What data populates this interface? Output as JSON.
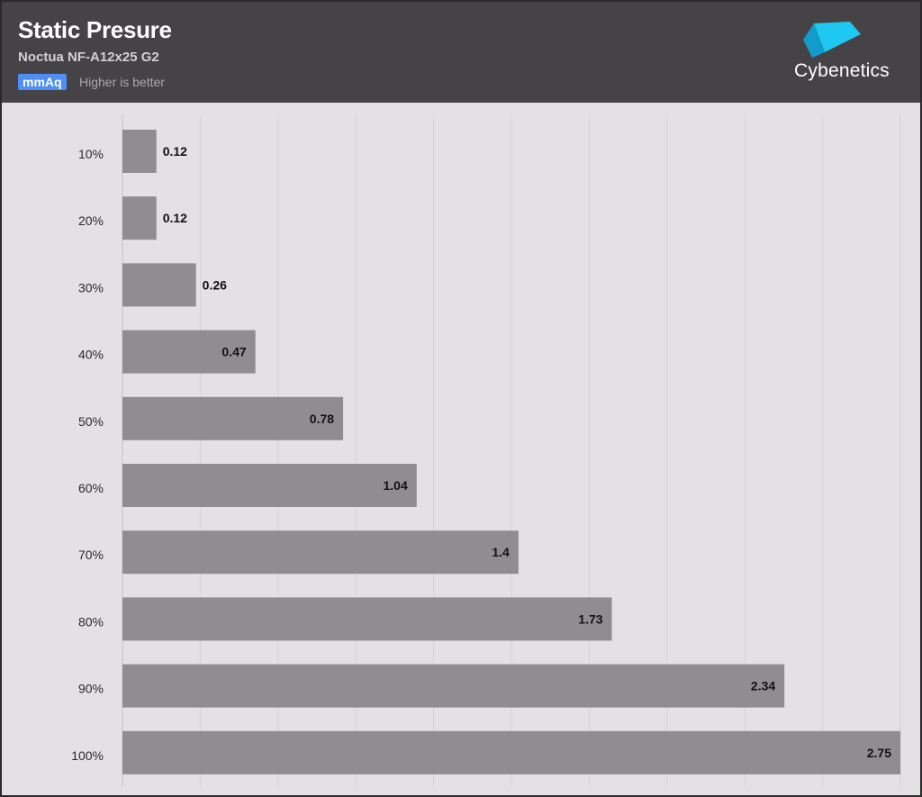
{
  "header": {
    "title": "Static Presure",
    "subtitle": "Noctua NF-A12x25 G2",
    "unit": "mmAq",
    "note": "Higher is better",
    "logo_text": "Cybenetics"
  },
  "colors": {
    "header_bg": "#454346",
    "plot_bg": "#e3e1e4",
    "bar": "#8f8d8f",
    "badge": "#4f8ef7",
    "logo_cube": "#1ec8f0"
  },
  "chart_data": {
    "type": "bar",
    "orientation": "horizontal",
    "title": "Static Presure",
    "subtitle": "Noctua NF-A12x25 G2",
    "unit": "mmAq",
    "categories": [
      "10%",
      "20%",
      "30%",
      "40%",
      "50%",
      "60%",
      "70%",
      "80%",
      "90%",
      "100%"
    ],
    "values": [
      0.12,
      0.12,
      0.26,
      0.47,
      0.78,
      1.04,
      1.4,
      1.73,
      2.34,
      2.75
    ],
    "value_labels": [
      "0.12",
      "0.12",
      "0.26",
      "0.47",
      "0.78",
      "1.04",
      "1.4",
      "1.73",
      "2.34",
      "2.75"
    ],
    "xlim": [
      0,
      2.75
    ],
    "grid": true,
    "legend": "none"
  }
}
